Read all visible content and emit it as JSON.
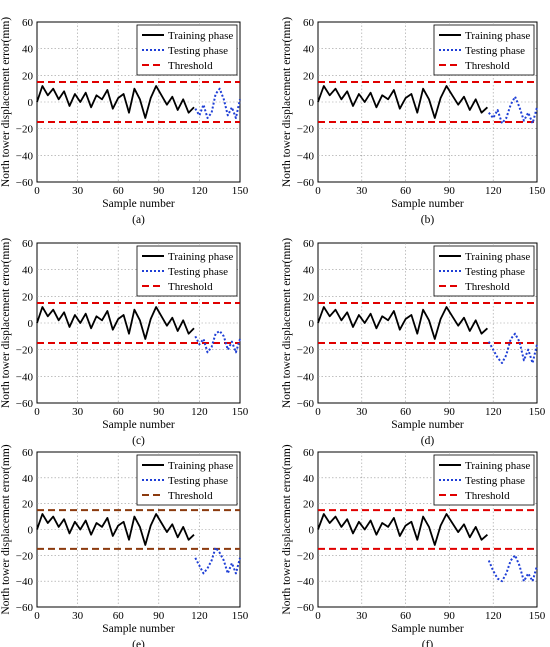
{
  "figure": {
    "panels": [
      "(a)",
      "(b)",
      "(c)",
      "(d)",
      "(e)",
      "(f)"
    ]
  },
  "chart_data": [
    {
      "type": "line",
      "panel_label": "(a)",
      "xlabel": "Sample number",
      "ylabel": "North tower displacement error(mm)",
      "xlim": [
        0,
        150
      ],
      "ylim": [
        -60,
        60
      ],
      "xticks": [
        "0",
        "30",
        "60",
        "90",
        "120",
        "150"
      ],
      "yticks": [
        "60",
        "40",
        "20",
        "0",
        "−20",
        "−40",
        "−60"
      ],
      "grid": true,
      "legend_position": "top-right",
      "threshold_lines": [
        15,
        -15
      ],
      "series": [
        {
          "name": "Training phase",
          "color": "#000000",
          "style": "solid",
          "x": [
            0,
            4,
            8,
            12,
            16,
            20,
            24,
            28,
            32,
            36,
            40,
            44,
            48,
            52,
            56,
            60,
            64,
            68,
            72,
            76,
            80,
            84,
            88,
            92,
            96,
            100,
            104,
            108,
            112,
            116
          ],
          "y": [
            0,
            12,
            5,
            10,
            2,
            8,
            -3,
            6,
            0,
            7,
            -4,
            5,
            2,
            9,
            -5,
            3,
            6,
            -8,
            10,
            2,
            -12,
            3,
            12,
            5,
            -2,
            4,
            -6,
            2,
            -8,
            -4
          ]
        },
        {
          "name": "Testing phase",
          "color": "#1f3fd6",
          "style": "dotted",
          "x": [
            117,
            120,
            123,
            126,
            129,
            132,
            135,
            138,
            141,
            144,
            147,
            150
          ],
          "y": [
            -5,
            -10,
            -2,
            -12,
            -8,
            6,
            10,
            2,
            -10,
            -4,
            -12,
            2
          ]
        },
        {
          "name": "Threshold",
          "color": "#e00000",
          "style": "dashed",
          "x": [
            0,
            150
          ],
          "y": [
            15,
            15
          ]
        }
      ]
    },
    {
      "type": "line",
      "panel_label": "(b)",
      "xlabel": "Sample number",
      "ylabel": "North tower displacement error(mm)",
      "xlim": [
        0,
        150
      ],
      "ylim": [
        -60,
        60
      ],
      "xticks": [
        "0",
        "30",
        "60",
        "90",
        "120",
        "150"
      ],
      "yticks": [
        "60",
        "40",
        "20",
        "0",
        "−20",
        "−40",
        "−60"
      ],
      "grid": true,
      "legend_position": "top-right",
      "threshold_lines": [
        15,
        -15
      ],
      "series": [
        {
          "name": "Training phase",
          "color": "#000000",
          "style": "solid",
          "x": [
            0,
            4,
            8,
            12,
            16,
            20,
            24,
            28,
            32,
            36,
            40,
            44,
            48,
            52,
            56,
            60,
            64,
            68,
            72,
            76,
            80,
            84,
            88,
            92,
            96,
            100,
            104,
            108,
            112,
            116
          ],
          "y": [
            0,
            12,
            5,
            10,
            2,
            8,
            -3,
            6,
            0,
            7,
            -4,
            5,
            2,
            9,
            -5,
            3,
            6,
            -8,
            10,
            2,
            -12,
            3,
            12,
            5,
            -2,
            4,
            -6,
            2,
            -8,
            -4
          ]
        },
        {
          "name": "Testing phase",
          "color": "#1f3fd6",
          "style": "dotted",
          "x": [
            117,
            120,
            123,
            126,
            129,
            132,
            135,
            138,
            141,
            144,
            147,
            150
          ],
          "y": [
            -8,
            -12,
            -6,
            -16,
            -12,
            -2,
            4,
            -4,
            -14,
            -8,
            -16,
            -4
          ]
        },
        {
          "name": "Threshold",
          "color": "#e00000",
          "style": "dashed",
          "x": [
            0,
            150
          ],
          "y": [
            15,
            15
          ]
        }
      ]
    },
    {
      "type": "line",
      "panel_label": "(c)",
      "xlabel": "Sample number",
      "ylabel": "North tower displacement error(mm)",
      "xlim": [
        0,
        150
      ],
      "ylim": [
        -60,
        60
      ],
      "xticks": [
        "0",
        "30",
        "60",
        "90",
        "120",
        "150"
      ],
      "yticks": [
        "60",
        "40",
        "20",
        "0",
        "−20",
        "−40",
        "−60"
      ],
      "grid": true,
      "legend_position": "top-right",
      "threshold_lines": [
        15,
        -15
      ],
      "series": [
        {
          "name": "Training phase",
          "color": "#000000",
          "style": "solid",
          "x": [
            0,
            4,
            8,
            12,
            16,
            20,
            24,
            28,
            32,
            36,
            40,
            44,
            48,
            52,
            56,
            60,
            64,
            68,
            72,
            76,
            80,
            84,
            88,
            92,
            96,
            100,
            104,
            108,
            112,
            116
          ],
          "y": [
            0,
            12,
            5,
            10,
            2,
            8,
            -3,
            6,
            0,
            7,
            -4,
            5,
            2,
            9,
            -5,
            3,
            6,
            -8,
            10,
            2,
            -12,
            3,
            12,
            5,
            -2,
            4,
            -6,
            2,
            -8,
            -4
          ]
        },
        {
          "name": "Testing phase",
          "color": "#1f3fd6",
          "style": "dotted",
          "x": [
            117,
            120,
            123,
            126,
            129,
            132,
            135,
            138,
            141,
            144,
            147,
            150
          ],
          "y": [
            -10,
            -16,
            -12,
            -22,
            -18,
            -8,
            -6,
            -10,
            -20,
            -14,
            -22,
            -12
          ]
        },
        {
          "name": "Threshold",
          "color": "#e00000",
          "style": "dashed",
          "x": [
            0,
            150
          ],
          "y": [
            15,
            15
          ]
        }
      ]
    },
    {
      "type": "line",
      "panel_label": "(d)",
      "xlabel": "Sample number",
      "ylabel": "North tower displacement error(mm)",
      "xlim": [
        0,
        150
      ],
      "ylim": [
        -60,
        60
      ],
      "xticks": [
        "0",
        "30",
        "60",
        "90",
        "120",
        "150"
      ],
      "yticks": [
        "60",
        "40",
        "20",
        "0",
        "−20",
        "−40",
        "−60"
      ],
      "grid": true,
      "legend_position": "top-right",
      "threshold_lines": [
        15,
        -15
      ],
      "series": [
        {
          "name": "Training phase",
          "color": "#000000",
          "style": "solid",
          "x": [
            0,
            4,
            8,
            12,
            16,
            20,
            24,
            28,
            32,
            36,
            40,
            44,
            48,
            52,
            56,
            60,
            64,
            68,
            72,
            76,
            80,
            84,
            88,
            92,
            96,
            100,
            104,
            108,
            112,
            116
          ],
          "y": [
            0,
            12,
            5,
            10,
            2,
            8,
            -3,
            6,
            0,
            7,
            -4,
            5,
            2,
            9,
            -5,
            3,
            6,
            -8,
            10,
            2,
            -12,
            3,
            12,
            5,
            -2,
            4,
            -6,
            2,
            -8,
            -4
          ]
        },
        {
          "name": "Testing phase",
          "color": "#1f3fd6",
          "style": "dotted",
          "x": [
            117,
            120,
            123,
            126,
            129,
            132,
            135,
            138,
            141,
            144,
            147,
            150
          ],
          "y": [
            -14,
            -20,
            -26,
            -30,
            -24,
            -12,
            -8,
            -14,
            -28,
            -20,
            -30,
            -16
          ]
        },
        {
          "name": "Threshold",
          "color": "#e00000",
          "style": "dashed",
          "x": [
            0,
            150
          ],
          "y": [
            15,
            15
          ]
        }
      ]
    },
    {
      "type": "line",
      "panel_label": "(e)",
      "xlabel": "Sample number",
      "ylabel": "North tower displacement error(mm)",
      "xlim": [
        0,
        150
      ],
      "ylim": [
        -60,
        60
      ],
      "xticks": [
        "0",
        "30",
        "60",
        "90",
        "120",
        "150"
      ],
      "yticks": [
        "60",
        "40",
        "20",
        "0",
        "−20",
        "−40",
        "−60"
      ],
      "grid": true,
      "legend_position": "top-right",
      "threshold_lines": [
        15,
        -15
      ],
      "series": [
        {
          "name": "Training phase",
          "color": "#000000",
          "style": "solid",
          "x": [
            0,
            4,
            8,
            12,
            16,
            20,
            24,
            28,
            32,
            36,
            40,
            44,
            48,
            52,
            56,
            60,
            64,
            68,
            72,
            76,
            80,
            84,
            88,
            92,
            96,
            100,
            104,
            108,
            112,
            116
          ],
          "y": [
            0,
            12,
            5,
            10,
            2,
            8,
            -3,
            6,
            0,
            7,
            -4,
            5,
            2,
            9,
            -5,
            3,
            6,
            -8,
            10,
            2,
            -12,
            3,
            12,
            5,
            -2,
            4,
            -6,
            2,
            -8,
            -4
          ]
        },
        {
          "name": "Testing phase",
          "color": "#1f3fd6",
          "style": "dotted",
          "x": [
            117,
            120,
            123,
            126,
            129,
            132,
            135,
            138,
            141,
            144,
            147,
            150
          ],
          "y": [
            -22,
            -28,
            -34,
            -30,
            -24,
            -14,
            -18,
            -24,
            -34,
            -26,
            -34,
            -22
          ]
        },
        {
          "name": "Threshold",
          "color": "#8b3a0e",
          "style": "dashed",
          "x": [
            0,
            150
          ],
          "y": [
            15,
            15
          ]
        }
      ]
    },
    {
      "type": "line",
      "panel_label": "(f)",
      "xlabel": "Sample number",
      "ylabel": "North tower displacement error(mm)",
      "xlim": [
        0,
        150
      ],
      "ylim": [
        -60,
        60
      ],
      "xticks": [
        "0",
        "30",
        "60",
        "90",
        "120",
        "150"
      ],
      "yticks": [
        "60",
        "40",
        "20",
        "0",
        "−20",
        "−40",
        "−60"
      ],
      "grid": true,
      "legend_position": "top-right",
      "threshold_lines": [
        15,
        -15
      ],
      "series": [
        {
          "name": "Training phase",
          "color": "#000000",
          "style": "solid",
          "x": [
            0,
            4,
            8,
            12,
            16,
            20,
            24,
            28,
            32,
            36,
            40,
            44,
            48,
            52,
            56,
            60,
            64,
            68,
            72,
            76,
            80,
            84,
            88,
            92,
            96,
            100,
            104,
            108,
            112,
            116
          ],
          "y": [
            0,
            12,
            5,
            10,
            2,
            8,
            -3,
            6,
            0,
            7,
            -4,
            5,
            2,
            9,
            -5,
            3,
            6,
            -8,
            10,
            2,
            -12,
            3,
            12,
            5,
            -2,
            4,
            -6,
            2,
            -8,
            -4
          ]
        },
        {
          "name": "Testing phase",
          "color": "#1f3fd6",
          "style": "dotted",
          "x": [
            117,
            120,
            123,
            126,
            129,
            132,
            135,
            138,
            141,
            144,
            147,
            150
          ],
          "y": [
            -24,
            -32,
            -38,
            -40,
            -34,
            -24,
            -20,
            -28,
            -40,
            -34,
            -40,
            -28
          ]
        },
        {
          "name": "Threshold",
          "color": "#e00000",
          "style": "dashed",
          "x": [
            0,
            150
          ],
          "y": [
            15,
            15
          ]
        }
      ]
    }
  ]
}
